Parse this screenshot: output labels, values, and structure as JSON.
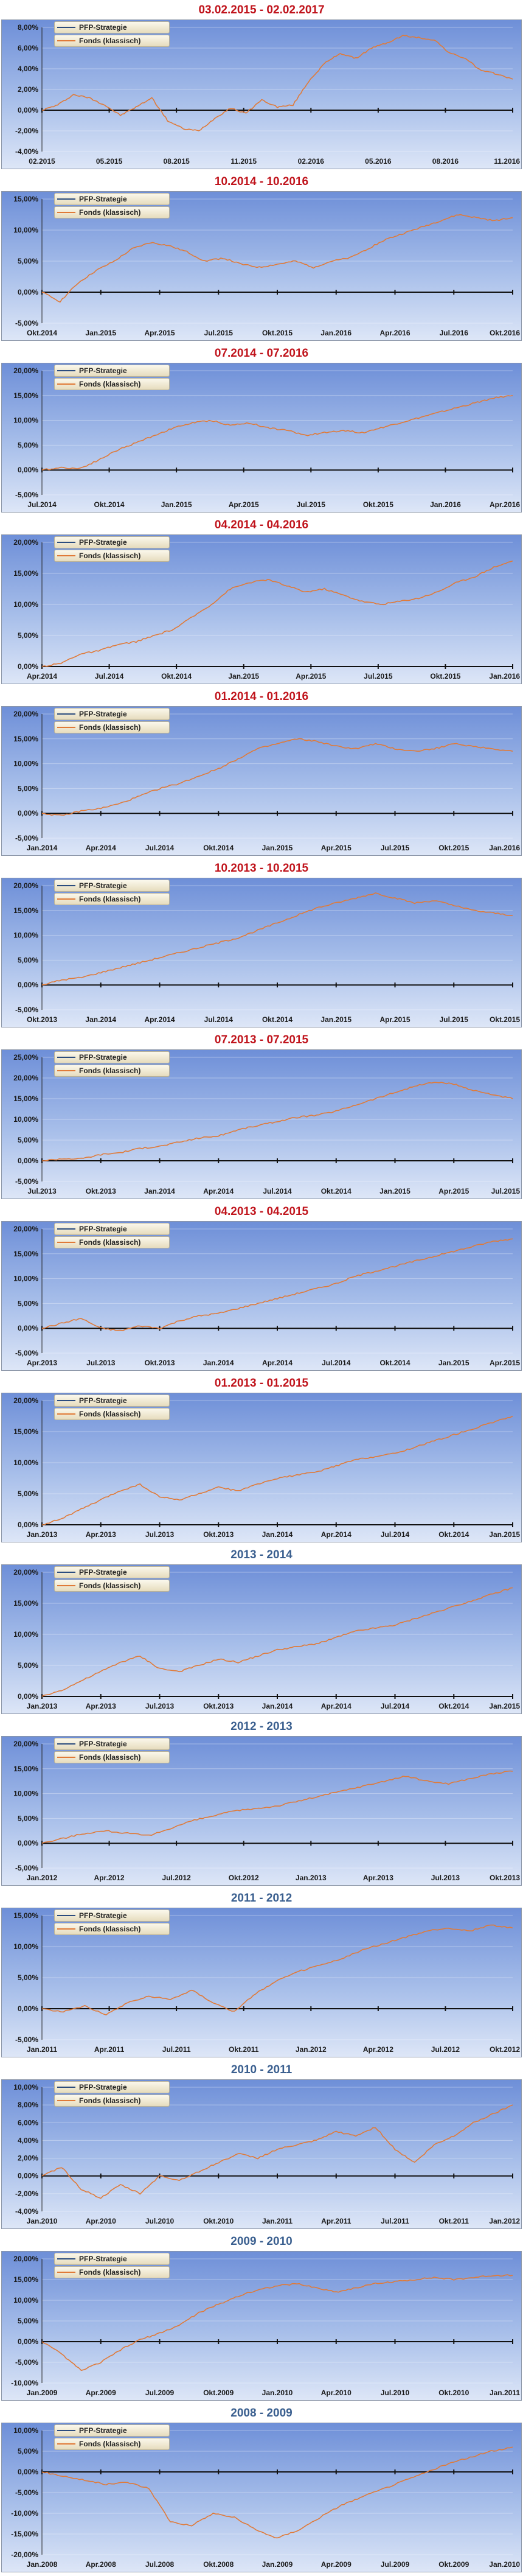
{
  "colors": {
    "title_red": "#c0141c",
    "title_blue": "#3a5f8f",
    "fund_line": "#e07a38",
    "strategy_line": "#2b4c7e"
  },
  "chart_data": [
    {
      "type": "line",
      "title": "03.02.2015 - 02.02.2017",
      "title_color": "red",
      "legend": [
        "PFP-Strategie",
        "Fonds (klassisch)"
      ],
      "legend_placement": "top-left",
      "y_ticks": [
        "8,00%",
        "6,00%",
        "4,00%",
        "2,00%",
        "0,00%",
        "-2,00%",
        "-4,00%"
      ],
      "ylim": [
        -4,
        8
      ],
      "x_ticks": [
        "02.2015",
        "05.2015",
        "08.2015",
        "11.2015",
        "02.2016",
        "05.2016",
        "08.2016",
        "11.2016"
      ],
      "series": [
        {
          "name": "Fonds (klassisch)",
          "values": [
            0.0,
            0.5,
            1.5,
            1.2,
            0.5,
            -0.5,
            0.3,
            1.2,
            -1.0,
            -1.8,
            -2.0,
            -0.8,
            0.2,
            -0.3,
            1.0,
            0.3,
            0.5,
            2.8,
            4.5,
            5.5,
            5.0,
            6.0,
            6.5,
            7.2,
            7.0,
            6.8,
            5.5,
            5.0,
            3.8,
            3.5,
            3.0
          ]
        }
      ]
    },
    {
      "type": "line",
      "title": "10.2014 - 10.2016",
      "title_color": "red",
      "legend": [
        "PFP-Strategie",
        "Fonds (klassisch)"
      ],
      "legend_placement": "top-left",
      "y_ticks": [
        "15,00%",
        "10,00%",
        "5,00%",
        "0,00%",
        "-5,00%"
      ],
      "ylim": [
        -5,
        15
      ],
      "x_ticks": [
        "Okt.2014",
        "Jan.2015",
        "Apr.2015",
        "Jul.2015",
        "Okt.2015",
        "Jan.2016",
        "Apr.2016",
        "Jul.2016",
        "Okt.2016"
      ],
      "series": [
        {
          "name": "Fonds (klassisch)",
          "values": [
            0.0,
            -1.5,
            1.5,
            3.5,
            5.0,
            7.0,
            8.0,
            7.5,
            6.5,
            5.0,
            5.5,
            4.5,
            4.0,
            4.5,
            5.0,
            4.0,
            5.0,
            5.5,
            7.0,
            8.5,
            9.5,
            10.5,
            11.5,
            12.5,
            12.0,
            11.5,
            12.0
          ]
        }
      ]
    },
    {
      "type": "line",
      "title": "07.2014 - 07.2016",
      "title_color": "red",
      "legend": [
        "PFP-Strategie",
        "Fonds (klassisch)"
      ],
      "legend_placement": "top-left",
      "y_ticks": [
        "20,00%",
        "15,00%",
        "10,00%",
        "5,00%",
        "0,00%",
        "-5,00%"
      ],
      "ylim": [
        -5,
        20
      ],
      "x_ticks": [
        "Jul.2014",
        "Okt.2014",
        "Jan.2015",
        "Apr.2015",
        "Jul.2015",
        "Okt.2015",
        "Jan.2016",
        "Apr.2016"
      ],
      "series": [
        {
          "name": "Fonds (klassisch)",
          "values": [
            0.0,
            0.5,
            0.3,
            2.0,
            4.0,
            5.5,
            7.0,
            8.5,
            9.5,
            10.0,
            9.0,
            9.5,
            8.5,
            8.0,
            7.0,
            7.5,
            8.0,
            7.5,
            8.5,
            9.5,
            10.5,
            11.5,
            12.5,
            13.5,
            14.5,
            15.0
          ]
        }
      ]
    },
    {
      "type": "line",
      "title": "04.2014 - 04.2016",
      "title_color": "red",
      "legend": [
        "PFP-Strategie",
        "Fonds (klassisch)"
      ],
      "legend_placement": "top-left",
      "y_ticks": [
        "20,00%",
        "15,00%",
        "10,00%",
        "5,00%",
        "0,00%"
      ],
      "ylim": [
        0,
        20
      ],
      "x_ticks": [
        "Apr.2014",
        "Jul.2014",
        "Okt.2014",
        "Jan.2015",
        "Apr.2015",
        "Jul.2015",
        "Okt.2015",
        "Jan.2016"
      ],
      "series": [
        {
          "name": "Fonds (klassisch)",
          "values": [
            0.0,
            0.5,
            2.0,
            2.5,
            3.5,
            4.0,
            5.0,
            6.0,
            8.0,
            10.0,
            12.5,
            13.5,
            14.0,
            13.0,
            12.0,
            12.5,
            11.5,
            10.5,
            10.0,
            10.5,
            11.0,
            12.0,
            13.5,
            14.5,
            16.0,
            17.0
          ]
        }
      ]
    },
    {
      "type": "line",
      "title": "01.2014 - 01.2016",
      "title_color": "red",
      "legend": [
        "PFP-Strategie",
        "Fonds (klassisch)"
      ],
      "legend_placement": "top-left",
      "y_ticks": [
        "20,00%",
        "15,00%",
        "10,00%",
        "5,00%",
        "0,00%",
        "-5,00%"
      ],
      "ylim": [
        -5,
        20
      ],
      "x_ticks": [
        "Jan.2014",
        "Apr.2014",
        "Jul.2014",
        "Okt.2014",
        "Jan.2015",
        "Apr.2015",
        "Jul.2015",
        "Okt.2015",
        "Jan.2016"
      ],
      "series": [
        {
          "name": "Fonds (klassisch)",
          "values": [
            0.0,
            -0.5,
            0.5,
            1.0,
            2.0,
            3.5,
            5.0,
            6.0,
            7.5,
            9.0,
            11.0,
            13.0,
            14.0,
            15.0,
            14.5,
            13.5,
            13.0,
            14.0,
            13.0,
            12.5,
            13.0,
            14.0,
            13.5,
            13.0,
            12.5
          ]
        }
      ]
    },
    {
      "type": "line",
      "title": "10.2013 - 10.2015",
      "title_color": "red",
      "legend": [
        "PFP-Strategie",
        "Fonds (klassisch)"
      ],
      "legend_placement": "top-left",
      "y_ticks": [
        "20,00%",
        "15,00%",
        "10,00%",
        "5,00%",
        "0,00%",
        "-5,00%"
      ],
      "ylim": [
        -5,
        20
      ],
      "x_ticks": [
        "Okt.2013",
        "Jan.2014",
        "Apr.2014",
        "Jul.2014",
        "Okt.2014",
        "Jan.2015",
        "Apr.2015",
        "Jul.2015",
        "Okt.2015"
      ],
      "series": [
        {
          "name": "Fonds (klassisch)",
          "values": [
            0.0,
            1.0,
            1.5,
            2.5,
            3.5,
            4.5,
            5.5,
            6.5,
            7.5,
            8.5,
            9.5,
            11.0,
            12.5,
            14.0,
            15.5,
            16.5,
            17.5,
            18.5,
            17.5,
            16.5,
            17.0,
            16.0,
            15.0,
            14.5,
            14.0
          ]
        }
      ]
    },
    {
      "type": "line",
      "title": "07.2013 - 07.2015",
      "title_color": "red",
      "legend": [
        "PFP-Strategie",
        "Fonds (klassisch)"
      ],
      "legend_placement": "top-left",
      "y_ticks": [
        "25,00%",
        "20,00%",
        "15,00%",
        "10,00%",
        "5,00%",
        "0,00%",
        "-5,00%"
      ],
      "ylim": [
        -5,
        25
      ],
      "x_ticks": [
        "Jul.2013",
        "Okt.2013",
        "Jan.2014",
        "Apr.2014",
        "Jul.2014",
        "Okt.2014",
        "Jan.2015",
        "Apr.2015",
        "Jul.2015"
      ],
      "series": [
        {
          "name": "Fonds (klassisch)",
          "values": [
            0.0,
            0.5,
            0.5,
            1.5,
            2.0,
            3.0,
            3.5,
            4.5,
            5.5,
            6.0,
            7.5,
            8.5,
            9.5,
            10.5,
            11.0,
            12.0,
            13.5,
            15.0,
            16.5,
            18.0,
            19.0,
            18.5,
            17.0,
            16.0,
            15.0
          ]
        }
      ]
    },
    {
      "type": "line",
      "title": "04.2013 - 04.2015",
      "title_color": "red",
      "legend": [
        "PFP-Strategie",
        "Fonds (klassisch)"
      ],
      "legend_placement": "top-left",
      "y_ticks": [
        "20,00%",
        "15,00%",
        "10,00%",
        "5,00%",
        "0,00%",
        "-5,00%"
      ],
      "ylim": [
        -5,
        20
      ],
      "x_ticks": [
        "Apr.2013",
        "Jul.2013",
        "Okt.2013",
        "Jan.2014",
        "Apr.2014",
        "Jul.2014",
        "Okt.2014",
        "Jan.2015",
        "Apr.2015"
      ],
      "series": [
        {
          "name": "Fonds (klassisch)",
          "values": [
            0.0,
            1.0,
            2.0,
            0.0,
            -0.5,
            0.5,
            0.0,
            1.5,
            2.5,
            3.0,
            4.0,
            5.0,
            6.0,
            7.0,
            8.0,
            9.0,
            10.5,
            11.5,
            12.5,
            13.5,
            14.5,
            15.5,
            16.5,
            17.5,
            18.0
          ]
        }
      ]
    },
    {
      "type": "line",
      "title": "01.2013 - 01.2015",
      "title_color": "red",
      "legend": [
        "PFP-Strategie",
        "Fonds (klassisch)"
      ],
      "legend_placement": "top-left",
      "y_ticks": [
        "20,00%",
        "15,00%",
        "10,00%",
        "5,00%",
        "0,00%"
      ],
      "ylim": [
        0,
        20
      ],
      "x_ticks": [
        "Jan.2013",
        "Apr.2013",
        "Jul.2013",
        "Okt.2013",
        "Jan.2014",
        "Apr.2014",
        "Jul.2014",
        "Okt.2014",
        "Jan.2015"
      ],
      "series": [
        {
          "name": "Fonds (klassisch)",
          "values": [
            0.0,
            1.0,
            2.5,
            4.0,
            5.5,
            6.5,
            4.5,
            4.0,
            5.0,
            6.0,
            5.5,
            6.5,
            7.5,
            8.0,
            8.5,
            9.5,
            10.5,
            11.0,
            11.5,
            12.5,
            13.5,
            14.5,
            15.5,
            16.5,
            17.5
          ]
        }
      ]
    },
    {
      "type": "line",
      "title": "2013 - 2014",
      "title_color": "blue",
      "legend": [
        "PFP-Strategie",
        "Fonds (klassisch)"
      ],
      "legend_placement": "top-left",
      "y_ticks": [
        "20,00%",
        "15,00%",
        "10,00%",
        "5,00%",
        "0,00%"
      ],
      "ylim": [
        0,
        20
      ],
      "x_ticks": [
        "Jan.2013",
        "Apr.2013",
        "Jul.2013",
        "Okt.2013",
        "Jan.2014",
        "Apr.2014",
        "Jul.2014",
        "Okt.2014",
        "Jan.2015"
      ],
      "series": [
        {
          "name": "Fonds (klassisch)",
          "values": [
            0.0,
            1.0,
            2.5,
            4.0,
            5.5,
            6.5,
            4.5,
            4.0,
            5.0,
            6.0,
            5.5,
            6.5,
            7.5,
            8.0,
            8.5,
            9.5,
            10.5,
            11.0,
            11.5,
            12.5,
            13.5,
            14.5,
            15.5,
            16.5,
            17.5
          ]
        }
      ]
    },
    {
      "type": "line",
      "title": "2012 - 2013",
      "title_color": "blue",
      "legend": [
        "PFP-Strategie",
        "Fonds (klassisch)"
      ],
      "legend_placement": "top-left",
      "y_ticks": [
        "20,00%",
        "15,00%",
        "10,00%",
        "5,00%",
        "0,00%",
        "-5,00%"
      ],
      "ylim": [
        -5,
        20
      ],
      "x_ticks": [
        "Jan.2012",
        "Apr.2012",
        "Jul.2012",
        "Okt.2012",
        "Jan.2013",
        "Apr.2013",
        "Jul.2013",
        "Okt.2013"
      ],
      "series": [
        {
          "name": "Fonds (klassisch)",
          "values": [
            0.0,
            1.0,
            2.0,
            2.5,
            2.0,
            1.5,
            3.0,
            4.5,
            5.5,
            6.5,
            7.0,
            7.5,
            8.5,
            9.5,
            10.5,
            11.5,
            12.5,
            13.5,
            12.5,
            12.0,
            13.0,
            14.0,
            14.5
          ]
        }
      ]
    },
    {
      "type": "line",
      "title": "2011 - 2012",
      "title_color": "blue",
      "legend": [
        "PFP-Strategie",
        "Fonds (klassisch)"
      ],
      "legend_placement": "top-left",
      "y_ticks": [
        "15,00%",
        "10,00%",
        "5,00%",
        "0,00%",
        "-5,00%"
      ],
      "ylim": [
        -5,
        15
      ],
      "x_ticks": [
        "Jan.2011",
        "Apr.2011",
        "Jul.2011",
        "Okt.2011",
        "Jan.2012",
        "Apr.2012",
        "Jul.2012",
        "Okt.2012"
      ],
      "series": [
        {
          "name": "Fonds (klassisch)",
          "values": [
            0.0,
            -0.5,
            0.5,
            -1.0,
            1.0,
            2.0,
            1.5,
            3.0,
            1.0,
            -0.5,
            2.5,
            4.5,
            6.0,
            7.0,
            8.0,
            9.5,
            10.5,
            11.5,
            12.5,
            13.0,
            12.5,
            13.5,
            13.0
          ]
        }
      ]
    },
    {
      "type": "line",
      "title": "2010 - 2011",
      "title_color": "blue",
      "legend": [
        "PFP-Strategie",
        "Fonds (klassisch)"
      ],
      "legend_placement": "top-left",
      "y_ticks": [
        "10,00%",
        "8,00%",
        "6,00%",
        "4,00%",
        "2,00%",
        "0,00%",
        "-2,00%",
        "-4,00%"
      ],
      "ylim": [
        -4,
        10
      ],
      "x_ticks": [
        "Jan.2010",
        "Apr.2010",
        "Jul.2010",
        "Okt.2010",
        "Jan.2011",
        "Apr.2011",
        "Jul.2011",
        "Okt.2011",
        "Jan.2012"
      ],
      "series": [
        {
          "name": "Fonds (klassisch)",
          "values": [
            0.0,
            1.0,
            -1.5,
            -2.5,
            -1.0,
            -2.0,
            0.0,
            -0.5,
            0.5,
            1.5,
            2.5,
            2.0,
            3.0,
            3.5,
            4.0,
            5.0,
            4.5,
            5.5,
            3.0,
            1.5,
            3.5,
            4.5,
            6.0,
            7.0,
            8.0
          ]
        }
      ]
    },
    {
      "type": "line",
      "title": "2009 - 2010",
      "title_color": "blue",
      "legend": [
        "PFP-Strategie",
        "Fonds (klassisch)"
      ],
      "legend_placement": "top-left",
      "y_ticks": [
        "20,00%",
        "15,00%",
        "10,00%",
        "5,00%",
        "0,00%",
        "-5,00%",
        "-10,00%"
      ],
      "ylim": [
        -10,
        20
      ],
      "x_ticks": [
        "Jan.2009",
        "Apr.2009",
        "Jul.2009",
        "Okt.2009",
        "Jan.2010",
        "Apr.2010",
        "Jul.2010",
        "Okt.2010",
        "Jan.2011"
      ],
      "series": [
        {
          "name": "Fonds (klassisch)",
          "values": [
            0.0,
            -3.0,
            -7.0,
            -5.0,
            -2.0,
            0.5,
            2.0,
            4.0,
            7.0,
            9.0,
            11.0,
            12.5,
            13.5,
            14.0,
            13.0,
            12.0,
            13.0,
            14.0,
            14.5,
            15.0,
            15.5,
            15.0,
            15.5,
            16.0,
            16.0
          ]
        }
      ]
    },
    {
      "type": "line",
      "title": "2008 - 2009",
      "title_color": "blue",
      "legend": [
        "PFP-Strategie",
        "Fonds (klassisch)"
      ],
      "legend_placement": "top-left",
      "y_ticks": [
        "10,00%",
        "5,00%",
        "0,00%",
        "-5,00%",
        "-10,00%",
        "-15,00%",
        "-20,00%"
      ],
      "ylim": [
        -20,
        10
      ],
      "x_ticks": [
        "Jan.2008",
        "Apr.2008",
        "Jul.2008",
        "Okt.2008",
        "Jan.2009",
        "Apr.2009",
        "Jul.2009",
        "Okt.2009",
        "Jan.2010"
      ],
      "series": [
        {
          "name": "Fonds (klassisch)",
          "values": [
            0.0,
            -1.0,
            -2.0,
            -3.0,
            -2.5,
            -4.0,
            -12.0,
            -13.0,
            -10.0,
            -11.0,
            -14.0,
            -16.0,
            -14.0,
            -11.0,
            -8.0,
            -6.0,
            -4.0,
            -2.0,
            0.0,
            2.0,
            3.5,
            5.0,
            6.0
          ]
        }
      ]
    }
  ]
}
